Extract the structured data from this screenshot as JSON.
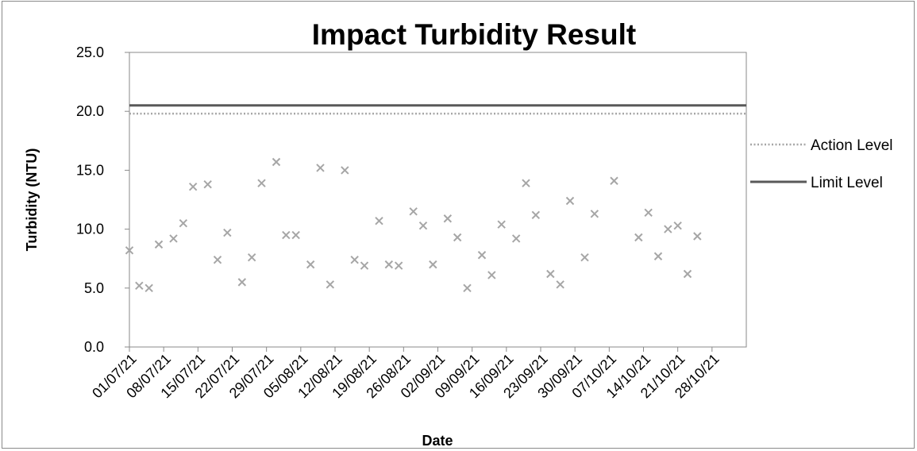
{
  "chart_data": {
    "type": "scatter",
    "title": "Impact Turbidity Result",
    "xlabel": "Date",
    "ylabel": "Turbidity (NTU)",
    "ylim": [
      0,
      25
    ],
    "y_ticks": [
      "0.0",
      "5.0",
      "10.0",
      "15.0",
      "20.0",
      "25.0"
    ],
    "x_tick_labels": [
      "01/07/21",
      "08/07/21",
      "15/07/21",
      "22/07/21",
      "29/07/21",
      "05/08/21",
      "12/08/21",
      "19/08/21",
      "26/08/21",
      "02/09/21",
      "09/09/21",
      "16/09/21",
      "23/09/21",
      "30/09/21",
      "07/10/21",
      "14/10/21",
      "21/10/21",
      "28/10/21"
    ],
    "grid": false,
    "legend_position": "right",
    "reference_lines": [
      {
        "name": "Action Level",
        "value": 19.8,
        "style": "dotted",
        "color": "#a6a6a6"
      },
      {
        "name": "Limit Level",
        "value": 20.5,
        "style": "solid",
        "color": "#595959"
      }
    ],
    "series": [
      {
        "marker": "x",
        "color": "#a6a6a6",
        "points": [
          [
            "01/07/21",
            8.2
          ],
          [
            "03/07/21",
            5.2
          ],
          [
            "05/07/21",
            5.0
          ],
          [
            "07/07/21",
            8.7
          ],
          [
            "10/07/21",
            9.2
          ],
          [
            "12/07/21",
            10.5
          ],
          [
            "14/07/21",
            13.6
          ],
          [
            "17/07/21",
            13.8
          ],
          [
            "19/07/21",
            7.4
          ],
          [
            "21/07/21",
            9.7
          ],
          [
            "24/07/21",
            5.5
          ],
          [
            "26/07/21",
            7.6
          ],
          [
            "28/07/21",
            13.9
          ],
          [
            "31/07/21",
            15.7
          ],
          [
            "02/08/21",
            9.5
          ],
          [
            "04/08/21",
            9.5
          ],
          [
            "07/08/21",
            7.0
          ],
          [
            "09/08/21",
            15.2
          ],
          [
            "11/08/21",
            5.3
          ],
          [
            "14/08/21",
            15.0
          ],
          [
            "16/08/21",
            7.4
          ],
          [
            "18/08/21",
            6.9
          ],
          [
            "21/08/21",
            10.7
          ],
          [
            "23/08/21",
            7.0
          ],
          [
            "25/08/21",
            6.9
          ],
          [
            "28/08/21",
            11.5
          ],
          [
            "30/08/21",
            10.3
          ],
          [
            "01/09/21",
            7.0
          ],
          [
            "04/09/21",
            10.9
          ],
          [
            "06/09/21",
            9.3
          ],
          [
            "08/09/21",
            5.0
          ],
          [
            "11/09/21",
            7.8
          ],
          [
            "13/09/21",
            6.1
          ],
          [
            "15/09/21",
            10.4
          ],
          [
            "18/09/21",
            9.2
          ],
          [
            "20/09/21",
            13.9
          ],
          [
            "22/09/21",
            11.2
          ],
          [
            "25/09/21",
            6.2
          ],
          [
            "27/09/21",
            5.3
          ],
          [
            "29/09/21",
            12.4
          ],
          [
            "02/10/21",
            7.6
          ],
          [
            "04/10/21",
            11.3
          ],
          [
            "08/10/21",
            14.1
          ],
          [
            "13/10/21",
            9.3
          ],
          [
            "15/10/21",
            11.4
          ],
          [
            "17/10/21",
            7.7
          ],
          [
            "19/10/21",
            10.0
          ],
          [
            "21/10/21",
            10.3
          ],
          [
            "23/10/21",
            6.2
          ],
          [
            "25/10/21",
            9.4
          ]
        ]
      }
    ]
  }
}
